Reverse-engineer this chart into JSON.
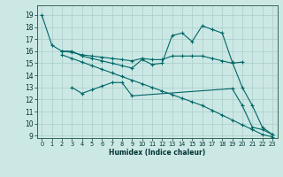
{
  "bg_color": "#cce8e4",
  "grid_color": "#aacccc",
  "line_color": "#006666",
  "xlim": [
    -0.5,
    23.5
  ],
  "ylim": [
    8.8,
    19.8
  ],
  "yticks": [
    9,
    10,
    11,
    12,
    13,
    14,
    15,
    16,
    17,
    18,
    19
  ],
  "xticks": [
    0,
    1,
    2,
    3,
    4,
    5,
    6,
    7,
    8,
    9,
    10,
    11,
    12,
    13,
    14,
    15,
    16,
    17,
    18,
    19,
    20,
    21,
    22,
    23
  ],
  "xlabel": "Humidex (Indice chaleur)",
  "line1_x": [
    0,
    1,
    2,
    3,
    4,
    5,
    6,
    7,
    8,
    9,
    10,
    11,
    12,
    13,
    14,
    15,
    16,
    17,
    18,
    19,
    20,
    21,
    22,
    23
  ],
  "line1_y": [
    19,
    16.5,
    16,
    16,
    15.6,
    15.4,
    15.2,
    15.0,
    14.8,
    14.6,
    15.3,
    14.9,
    15.0,
    17.3,
    17.5,
    16.8,
    18.1,
    17.8,
    17.5,
    15.1,
    13.0,
    11.5,
    9.7,
    9.1
  ],
  "line2_x": [
    2,
    3,
    4,
    5,
    6,
    7,
    8,
    9,
    10,
    11,
    12,
    13,
    14,
    15,
    16,
    17,
    18,
    19,
    20
  ],
  "line2_y": [
    16.0,
    15.9,
    15.7,
    15.6,
    15.5,
    15.4,
    15.3,
    15.2,
    15.4,
    15.3,
    15.3,
    15.6,
    15.6,
    15.6,
    15.6,
    15.4,
    15.2,
    15.0,
    15.1
  ],
  "line3_x": [
    2,
    3,
    4,
    5,
    6,
    7,
    8,
    9,
    10,
    11,
    12,
    13,
    14,
    15,
    16,
    17,
    18,
    19,
    20,
    21,
    22,
    23
  ],
  "line3_y": [
    15.7,
    15.4,
    15.1,
    14.8,
    14.5,
    14.2,
    13.9,
    13.6,
    13.3,
    13.0,
    12.7,
    12.4,
    12.1,
    11.8,
    11.5,
    11.1,
    10.7,
    10.3,
    9.9,
    9.5,
    9.1,
    8.9
  ],
  "line4_x": [
    3,
    4,
    5,
    6,
    7,
    8,
    9,
    19,
    20,
    21,
    22,
    23
  ],
  "line4_y": [
    13.0,
    12.5,
    12.8,
    13.1,
    13.4,
    13.4,
    12.3,
    12.9,
    11.5,
    9.7,
    9.5,
    9.1
  ]
}
